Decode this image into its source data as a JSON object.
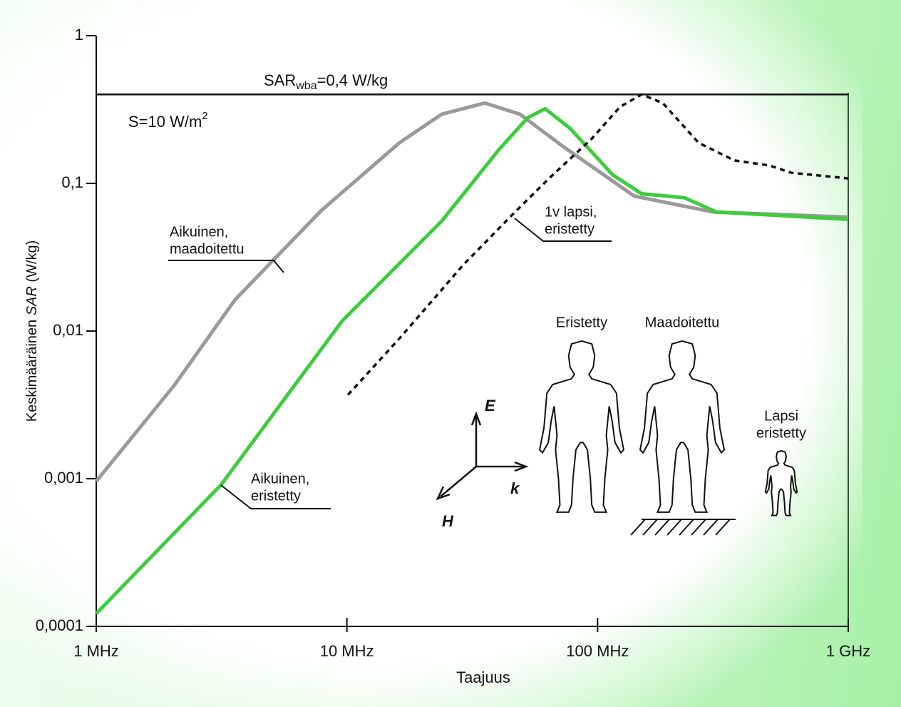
{
  "chart_data": {
    "type": "line",
    "xscale": "log",
    "yscale": "log",
    "xlabel": "Taajuus",
    "ylabel": [
      "Keskimääräinen ",
      "SAR",
      " (W/kg)"
    ],
    "xlim": [
      1,
      1000
    ],
    "xticks": [
      {
        "value": 1,
        "label": "1 MHz"
      },
      {
        "value": 10,
        "label": "10 MHz"
      },
      {
        "value": 100,
        "label": "100 MHz"
      },
      {
        "value": 1000,
        "label": "1 GHz"
      }
    ],
    "ylim": [
      0.0001,
      1
    ],
    "yticks": [
      {
        "value": 0.0001,
        "label": "0,0001"
      },
      {
        "value": 0.001,
        "label": "0,001"
      },
      {
        "value": 0.01,
        "label": "0,01"
      },
      {
        "value": 0.1,
        "label": "0,1"
      },
      1
    ],
    "reference": {
      "value": 0.4,
      "label": [
        "SAR",
        "wba",
        "=0,4 W/kg"
      ]
    },
    "field_label": [
      "S=10 W/m",
      "2"
    ],
    "series": [
      {
        "color": "#9a9a9a",
        "style": "solid",
        "annotation": [
          "Aikuinen,",
          "maadoitettu"
        ],
        "x": [
          1,
          2.05,
          3.58,
          7.87,
          16.2,
          23.9,
          35.5,
          49,
          72.8,
          140,
          288,
          1000
        ],
        "values": [
          0.00096,
          0.0043,
          0.0163,
          0.065,
          0.188,
          0.294,
          0.35,
          0.294,
          0.178,
          0.082,
          0.064,
          0.059
        ]
      },
      {
        "color": "#3dcc3d",
        "style": "solid",
        "annotation": [
          "Aikuinen,",
          "eristetty"
        ],
        "x": [
          1,
          3.15,
          9.57,
          23.9,
          40.4,
          52.6,
          61.8,
          77.8,
          115,
          150,
          222,
          298,
          1000
        ],
        "values": [
          0.000122,
          0.00091,
          0.0117,
          0.0555,
          0.169,
          0.278,
          0.32,
          0.235,
          0.114,
          0.085,
          0.08,
          0.064,
          0.057
        ]
      },
      {
        "color": "#111111",
        "style": "dashed",
        "annotation": [
          "1v lapsi,",
          "eristetty"
        ],
        "x": [
          10.1,
          16.2,
          29.1,
          46,
          64,
          94.6,
          123,
          150,
          182,
          253,
          351,
          486,
          592,
          1000
        ],
        "values": [
          0.0037,
          0.0089,
          0.028,
          0.062,
          0.108,
          0.2,
          0.33,
          0.4,
          0.35,
          0.188,
          0.143,
          0.132,
          0.118,
          0.108
        ]
      }
    ],
    "diagram": {
      "labels": [
        "Eristetty",
        "Maadoitettu",
        "Lapsi",
        "eristetty"
      ],
      "axes": [
        "E",
        "k",
        "H"
      ]
    }
  }
}
